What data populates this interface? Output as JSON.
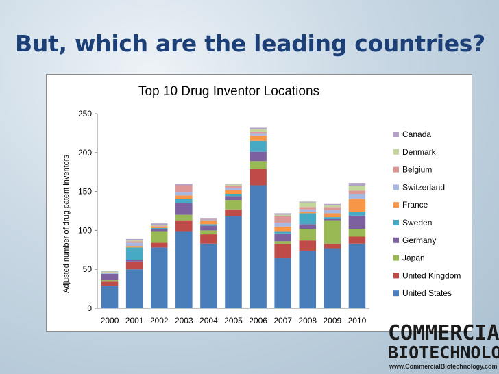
{
  "slide": {
    "title": "But, which are the leading countries?"
  },
  "logo": {
    "line1": "COMMERCIAL",
    "line2": "BIOTECHNOLOGY",
    "url": "www.CommercialBiotechnology.com"
  },
  "chart_data": {
    "type": "stacked-bar",
    "title": "Top 10 Drug Inventor Locations",
    "xlabel": "",
    "ylabel": "Adjusted number of drug patent inventors",
    "ylim": [
      0,
      250
    ],
    "yticks": [
      0,
      50,
      100,
      150,
      200,
      250
    ],
    "grid": false,
    "legend_position": "right",
    "categories": [
      "2000",
      "2001",
      "2002",
      "2003",
      "2004",
      "2005",
      "2006",
      "2007",
      "2008",
      "2009",
      "2010"
    ],
    "series": [
      {
        "name": "United States",
        "color": "#4a7ebb",
        "values": [
          29,
          50,
          78,
          99,
          83,
          118,
          158,
          65,
          74,
          77,
          83
        ]
      },
      {
        "name": "United Kingdom",
        "color": "#be4b48",
        "values": [
          6,
          9,
          6,
          14,
          12,
          9,
          21,
          18,
          13,
          6,
          9
        ]
      },
      {
        "name": "Japan",
        "color": "#98b954",
        "values": [
          1,
          1,
          15,
          7,
          5,
          12,
          10,
          3,
          15,
          30,
          10
        ]
      },
      {
        "name": "Germany",
        "color": "#7d60a0",
        "values": [
          8,
          2,
          3,
          15,
          6,
          5,
          12,
          10,
          6,
          2,
          17
        ]
      },
      {
        "name": "Sweden",
        "color": "#46aac4",
        "values": [
          0,
          16,
          1,
          5,
          2,
          3,
          14,
          3,
          14,
          2,
          5
        ]
      },
      {
        "name": "France",
        "color": "#f79646",
        "values": [
          0,
          2,
          1,
          5,
          5,
          5,
          7,
          6,
          2,
          5,
          16
        ]
      },
      {
        "name": "Switzerland",
        "color": "#a7b9e1",
        "values": [
          1,
          4,
          1,
          4,
          1,
          3,
          3,
          5,
          3,
          4,
          7
        ]
      },
      {
        "name": "Belgium",
        "color": "#dd9797",
        "values": [
          1,
          2,
          1,
          9,
          1,
          2,
          2,
          8,
          3,
          4,
          4
        ]
      },
      {
        "name": "Denmark",
        "color": "#c3d69b",
        "values": [
          1,
          1,
          1,
          0,
          0,
          2,
          3,
          2,
          6,
          2,
          6
        ]
      },
      {
        "name": "Canada",
        "color": "#b3a2c7",
        "values": [
          1,
          2,
          2,
          2,
          1,
          1,
          2,
          2,
          1,
          2,
          4
        ]
      }
    ]
  }
}
